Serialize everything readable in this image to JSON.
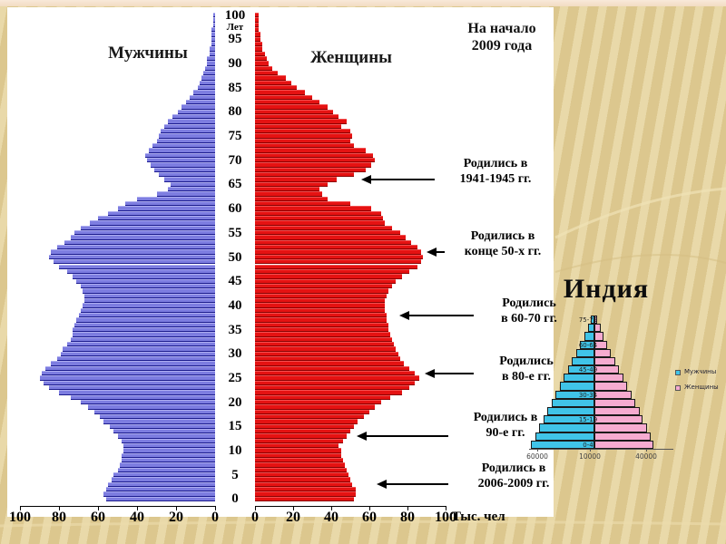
{
  "colors": {
    "male_bar": "#7d7de0",
    "male_bar_separator": "#1b1b8e",
    "female_bar": "#e51212",
    "female_bar_separator": "#8a0000",
    "india_male_bar": "#40c4e8",
    "india_female_bar": "#f6abd0",
    "slide_background": "#decb96",
    "chart_panel": "#ffffff"
  },
  "chart_data": [
    {
      "type": "bar",
      "subtype": "population_pyramid_single_year_ages",
      "title": "На начало 2009 года",
      "title_lines": [
        "На начало",
        "2009 года"
      ],
      "left_series_label": "Мужчины",
      "right_series_label": "Женщины",
      "age_axis_label": "Лет",
      "value_axis_label": "Тыс. чел",
      "age_range": [
        0,
        100
      ],
      "age_ticks": [
        0,
        5,
        10,
        15,
        20,
        25,
        30,
        35,
        40,
        45,
        50,
        55,
        60,
        65,
        70,
        75,
        80,
        85,
        90,
        95,
        100
      ],
      "value_ticks": [
        0,
        20,
        40,
        60,
        80,
        100
      ],
      "value_ticks_men_display": [
        "100",
        "80",
        "60",
        "40",
        "20",
        "0"
      ],
      "value_ticks_women_display": [
        "0",
        "20",
        "40",
        "60",
        "80",
        "100"
      ],
      "series": [
        {
          "name": "Мужчины",
          "side": "left",
          "values_by_age_0_to_100": [
            56,
            57,
            56,
            55,
            53,
            52,
            50,
            49,
            48,
            48,
            47,
            47,
            48,
            50,
            52,
            54,
            57,
            59,
            62,
            65,
            69,
            74,
            80,
            85,
            88,
            90,
            89,
            87,
            84,
            81,
            79,
            78,
            76,
            74,
            73,
            73,
            72,
            71,
            70,
            69,
            68,
            67,
            67,
            68,
            69,
            71,
            73,
            76,
            80,
            83,
            85,
            84,
            81,
            77,
            74,
            72,
            69,
            64,
            60,
            55,
            50,
            46,
            40,
            30,
            24,
            23,
            26,
            29,
            31,
            33,
            35,
            36,
            34,
            32,
            30,
            29,
            28,
            26,
            24,
            22,
            19,
            17,
            15,
            13,
            11,
            9,
            8,
            7,
            6,
            5,
            4,
            4,
            3,
            3,
            2,
            2,
            2,
            2,
            1,
            1,
            1
          ]
        },
        {
          "name": "Женщины",
          "side": "right",
          "values_by_age_0_to_100": [
            52,
            53,
            53,
            51,
            50,
            49,
            48,
            47,
            46,
            45,
            45,
            44,
            46,
            48,
            50,
            52,
            54,
            57,
            60,
            63,
            66,
            71,
            77,
            81,
            84,
            86,
            84,
            81,
            78,
            76,
            75,
            74,
            73,
            72,
            71,
            70,
            70,
            69,
            69,
            68,
            68,
            68,
            69,
            70,
            72,
            74,
            77,
            81,
            85,
            87,
            88,
            87,
            85,
            82,
            79,
            76,
            72,
            68,
            67,
            66,
            61,
            50,
            38,
            35,
            34,
            38,
            43,
            52,
            58,
            61,
            63,
            62,
            58,
            52,
            50,
            51,
            50,
            45,
            48,
            44,
            41,
            38,
            34,
            30,
            26,
            22,
            19,
            16,
            12,
            9,
            7,
            6,
            5,
            4,
            4,
            3,
            3,
            2,
            2,
            2,
            2
          ]
        }
      ],
      "annotations": [
        {
          "lines": [
            "Родились в",
            "1941-1945 гг."
          ],
          "target_age": 66
        },
        {
          "lines": [
            "Родились в",
            "конце 50-х гг."
          ],
          "target_age": 51
        },
        {
          "lines": [
            "Родились",
            "в 60-70 гг."
          ],
          "target_age": 38
        },
        {
          "lines": [
            "Родились",
            "в 80-е гг."
          ],
          "target_age": 26
        },
        {
          "lines": [
            "Родились в",
            "90-е гг."
          ],
          "target_age": 13
        },
        {
          "lines": [
            "Родились в",
            "2006-2009 гг."
          ],
          "target_age": 3
        }
      ]
    },
    {
      "type": "bar",
      "subtype": "population_pyramid_5_year_groups",
      "title": "Индия",
      "categories": [
        "0-4",
        "5-9",
        "10-14",
        "15-19",
        "20-24",
        "25-29",
        "30-34",
        "35-39",
        "40-44",
        "45-49",
        "50-54",
        "55-59",
        "60-64",
        "65-69",
        "70-74",
        "75-79"
      ],
      "series": [
        {
          "name": "Мужчины",
          "side": "left",
          "values": [
            62000,
            58000,
            54000,
            50000,
            46000,
            42000,
            38000,
            34000,
            30000,
            26000,
            22000,
            18000,
            14000,
            10000,
            6500,
            3500
          ]
        },
        {
          "name": "Женщины",
          "side": "right",
          "values": [
            58000,
            55000,
            51000,
            47000,
            44000,
            40000,
            36000,
            32000,
            28000,
            24000,
            20000,
            16000,
            12000,
            9000,
            6000,
            3000
          ]
        }
      ],
      "bar_age_labels_shown": [
        "0-4",
        "15-19",
        "30-34",
        "45-49",
        "60-64",
        "75-79"
      ],
      "x_tick_labels": [
        "60000",
        "10000",
        "40000"
      ],
      "legend": {
        "position": "right",
        "entries": [
          "Мужчины",
          "Женщины"
        ]
      }
    }
  ]
}
